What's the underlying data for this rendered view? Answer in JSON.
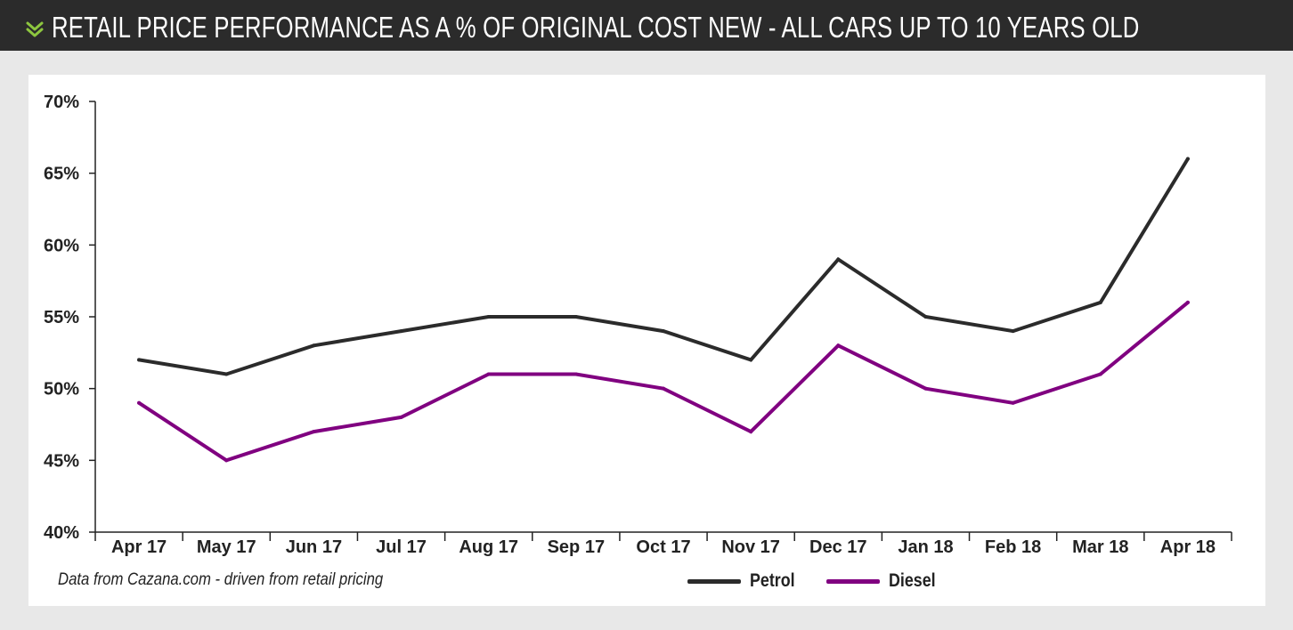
{
  "header": {
    "title": "RETAIL PRICE PERFORMANCE AS A % OF ORIGINAL COST NEW - ALL CARS UP TO 10 YEARS OLD",
    "icon": "double-chevron-down-icon"
  },
  "colors": {
    "header_bg": "#2b2b2b",
    "accent": "#8dc63f",
    "petrol": "#2b2b2b",
    "diesel": "#800080",
    "axis": "#222222"
  },
  "footer": {
    "source_note": "Data from Cazana.com - driven from retail pricing"
  },
  "chart_data": {
    "type": "line",
    "title": "RETAIL PRICE PERFORMANCE AS A % OF ORIGINAL COST NEW - ALL CARS UP TO 10 YEARS OLD",
    "xlabel": "",
    "ylabel": "",
    "categories": [
      "Apr 17",
      "May 17",
      "Jun 17",
      "Jul 17",
      "Aug 17",
      "Sep 17",
      "Oct 17",
      "Nov 17",
      "Dec 17",
      "Jan 18",
      "Feb 18",
      "Mar 18",
      "Apr 18"
    ],
    "ylim": [
      40,
      70
    ],
    "yticks": [
      40,
      45,
      50,
      55,
      60,
      65,
      70
    ],
    "ytick_labels": [
      "40%",
      "45%",
      "50%",
      "55%",
      "60%",
      "65%",
      "70%"
    ],
    "grid": false,
    "legend_position": "bottom-center",
    "series": [
      {
        "name": "Petrol",
        "color": "#2b2b2b",
        "values": [
          52,
          51,
          53,
          54,
          55,
          55,
          54,
          52,
          59,
          55,
          54,
          56,
          66
        ]
      },
      {
        "name": "Diesel",
        "color": "#800080",
        "values": [
          49,
          45,
          47,
          48,
          51,
          51,
          50,
          47,
          53,
          50,
          49,
          51,
          56
        ]
      }
    ]
  }
}
